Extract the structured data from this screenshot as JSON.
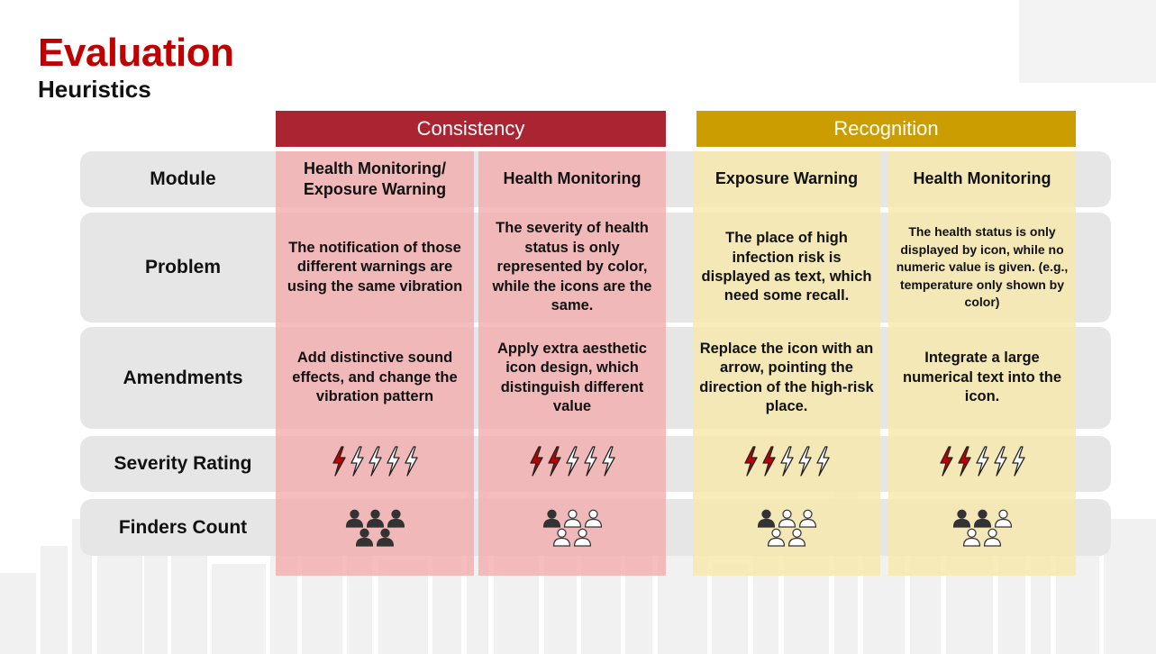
{
  "title": "Evaluation",
  "subtitle": "Heuristics",
  "groups": {
    "consistency": "Consistency",
    "recognition": "Recognition"
  },
  "rows": {
    "module": "Module",
    "problem": "Problem",
    "amendments": "Amendments",
    "severity": "Severity Rating",
    "finders": "Finders Count"
  },
  "columns": [
    {
      "group": "Consistency",
      "module": "Health Monitoring/ Exposure Warning",
      "problem": "The notification of those different warnings are using the same vibration",
      "amendments": "Add distinctive sound effects, and change the vibration pattern",
      "severity": 1,
      "severity_max": 5,
      "finders": 5,
      "finders_max": 5
    },
    {
      "group": "Consistency",
      "module": "Health Monitoring",
      "problem": "The severity of health status is only represented by color, while the icons are the same.",
      "amendments": "Apply extra aesthetic icon design, which distinguish different value",
      "severity": 2,
      "severity_max": 5,
      "finders": 1,
      "finders_max": 5
    },
    {
      "group": "Recognition",
      "module": "Exposure Warning",
      "problem": "The place of high infection risk is displayed as text, which need some recall.",
      "amendments": "Replace the icon with an arrow, pointing the direction of the high-risk place.",
      "severity": 2,
      "severity_max": 5,
      "finders": 1,
      "finders_max": 5
    },
    {
      "group": "Recognition",
      "module": "Health Monitoring",
      "problem": "The health status is only displayed by icon, while no numeric value is given. (e.g., temperature only shown by color)",
      "amendments": "Integrate a large numerical text into the icon.",
      "severity": 2,
      "severity_max": 5,
      "finders": 2,
      "finders_max": 5
    }
  ],
  "colors": {
    "title": "#c00000",
    "consistency_band": "#ab2431",
    "recognition_band": "#cc9d00",
    "consistency_column": "#f4aaac",
    "recognition_column": "#f8e8ac",
    "row_background": "#e6e6e6",
    "bolt_filled": "#c00000",
    "person_filled": "#333333"
  },
  "icons": {
    "severity": "lightning-bolt-icon",
    "finders": "person-icon"
  }
}
